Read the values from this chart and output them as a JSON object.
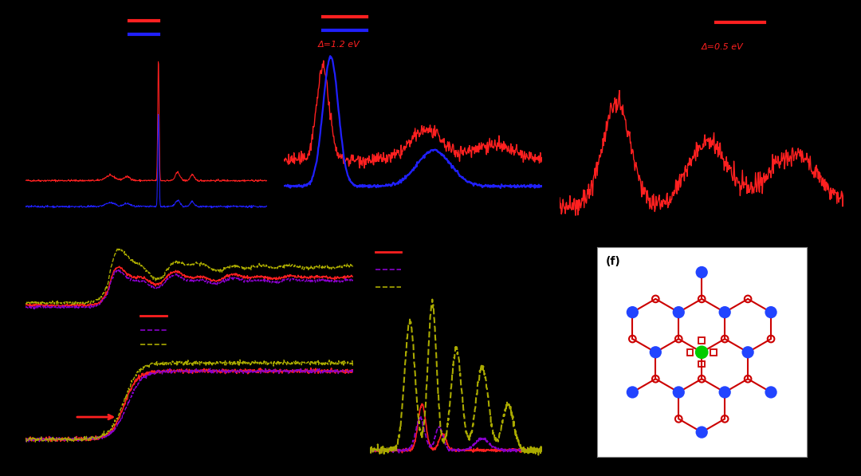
{
  "bg": "#000000",
  "red": "#ff2020",
  "blue": "#2020ff",
  "purple": "#8800cc",
  "yellow": "#aaaa00",
  "ann_b": "Δ=1.2 eV",
  "ann_c": "Δ=0.5 eV",
  "mol_bg": "#ffffff",
  "mol_blue": "#2244ff",
  "mol_red_bond": "#cc0000",
  "mol_green": "#00cc00"
}
